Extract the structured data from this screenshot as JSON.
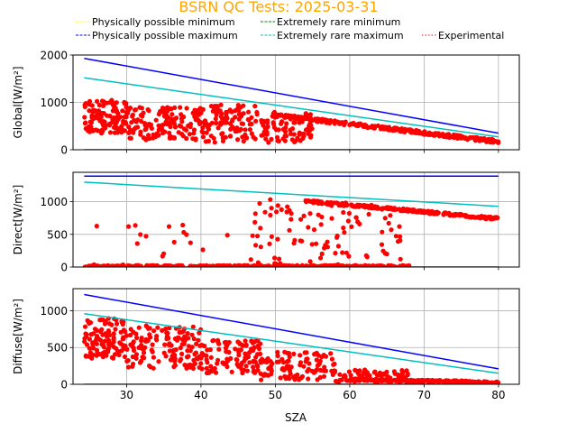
{
  "title": "BSRN QC Tests: 2025-03-31",
  "title_color": "#ffa500",
  "legend": [
    {
      "label": "Physically possible minimum",
      "color": "#ffff00",
      "style": "dashed"
    },
    {
      "label": "Physically possible maximum",
      "color": "#0000ff",
      "style": "dashed"
    },
    {
      "label": "Extremely rare minimum",
      "color": "#008000",
      "style": "dashed"
    },
    {
      "label": "Extremely rare maximum",
      "color": "#00bfbf",
      "style": "dashed"
    },
    {
      "label": "Experimental",
      "color": "#ff0000",
      "style": "dotted"
    }
  ],
  "chart_data": {
    "type": "scatter",
    "xlabel": "SZA",
    "xlim": [
      22.8,
      82.8
    ],
    "xticks": [
      30,
      40,
      50,
      60,
      70,
      80
    ],
    "grid": true,
    "legend_placement": "top",
    "panels": [
      {
        "ylabel": "Global[W/m²]",
        "ylim": [
          0,
          2000
        ],
        "yticks": [
          0,
          1000,
          2000
        ],
        "lines": {
          "phys_max": {
            "x": [
              24.3,
              80
            ],
            "y": [
              1930,
              350
            ],
            "color": "#0000ff"
          },
          "rare_max": {
            "x": [
              24.3,
              80
            ],
            "y": [
              1520,
              270
            ],
            "color": "#00bfbf"
          },
          "rare_min": {
            "x": [
              24.3,
              80
            ],
            "y": [
              0,
              0
            ],
            "color": "#008000"
          }
        },
        "scatter": {
          "color": "#ff0000",
          "regions": [
            {
              "x": [
                24.3,
                30
              ],
              "y": [
                350,
                1050
              ],
              "n": 120
            },
            {
              "x": [
                30,
                40
              ],
              "y": [
                180,
                900
              ],
              "n": 140
            },
            {
              "x": [
                40,
                48
              ],
              "y": [
                150,
                950
              ],
              "n": 110
            },
            {
              "x": [
                48,
                55
              ],
              "y": [
                150,
                800
              ],
              "n": 90
            }
          ],
          "trend": {
            "x": [
              50,
              80
            ],
            "y": [
              730,
              170
            ],
            "spread": 35,
            "n": 260
          }
        }
      },
      {
        "ylabel": "Direct[W/m²]",
        "ylim": [
          0,
          1450
        ],
        "yticks": [
          0,
          500,
          1000
        ],
        "lines": {
          "phys_max": {
            "x": [
              24.3,
              80
            ],
            "y": [
              1390,
              1390
            ],
            "color": "#0000ff"
          },
          "rare_max": {
            "x": [
              24.3,
              80
            ],
            "y": [
              1300,
              930
            ],
            "color": "#00bfbf"
          },
          "rare_min": {
            "x": [
              24.3,
              80
            ],
            "y": [
              0,
              0
            ],
            "color": "#008000"
          }
        },
        "scatter": {
          "color": "#ff0000",
          "regions": [
            {
              "x": [
                24.3,
                68
              ],
              "y": [
                0,
                25
              ],
              "n": 330
            },
            {
              "x": [
                25,
                46
              ],
              "y": [
                30,
                650
              ],
              "n": 18
            },
            {
              "x": [
                46,
                60
              ],
              "y": [
                30,
                1050
              ],
              "n": 70
            },
            {
              "x": [
                60,
                67
              ],
              "y": [
                50,
                1000
              ],
              "n": 25
            }
          ],
          "trend": {
            "x": [
              54,
              80
            ],
            "y": [
              1010,
              740
            ],
            "spread": 20,
            "n": 240
          }
        }
      },
      {
        "ylabel": "Diffuse[W/m²]",
        "ylim": [
          0,
          1300
        ],
        "yticks": [
          0,
          500,
          1000
        ],
        "lines": {
          "phys_max": {
            "x": [
              24.3,
              80
            ],
            "y": [
              1220,
              210
            ],
            "color": "#0000ff"
          },
          "rare_max": {
            "x": [
              24.3,
              80
            ],
            "y": [
              960,
              150
            ],
            "color": "#00bfbf"
          },
          "rare_min": {
            "x": [
              24.3,
              80
            ],
            "y": [
              0,
              0
            ],
            "color": "#008000"
          }
        },
        "scatter": {
          "color": "#ff0000",
          "regions": [
            {
              "x": [
                24.3,
                30
              ],
              "y": [
                350,
                900
              ],
              "n": 110
            },
            {
              "x": [
                30,
                40
              ],
              "y": [
                200,
                800
              ],
              "n": 140
            },
            {
              "x": [
                40,
                48
              ],
              "y": [
                150,
                600
              ],
              "n": 110
            },
            {
              "x": [
                48,
                58
              ],
              "y": [
                50,
                450
              ],
              "n": 110
            },
            {
              "x": [
                58,
                68
              ],
              "y": [
                20,
                200
              ],
              "n": 70
            }
          ],
          "trend": {
            "x": [
              60,
              80
            ],
            "y": [
              60,
              25
            ],
            "spread": 15,
            "n": 220
          }
        }
      }
    ]
  }
}
